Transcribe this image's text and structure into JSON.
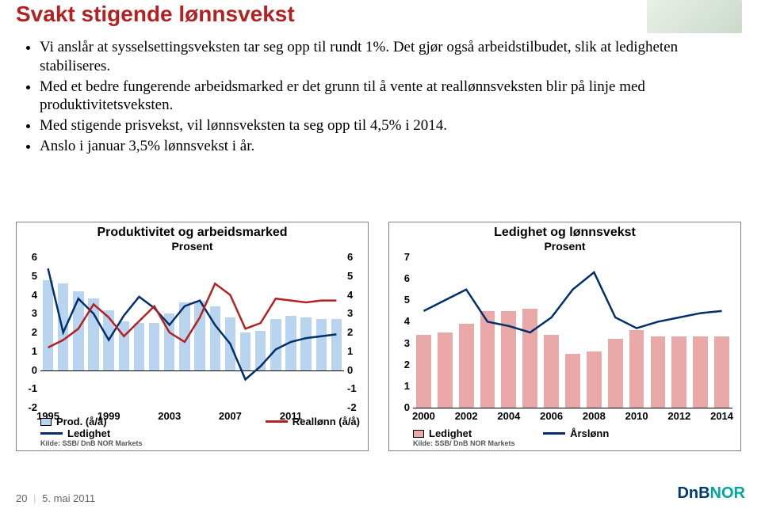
{
  "title": "Svakt stigende lønnsvekst",
  "title_color": "#b22222",
  "bullets": [
    "Vi anslår at sysselsettingsveksten tar seg opp til rundt 1%. Det gjør også arbeidstilbudet, slik at ledigheten stabiliseres.",
    "Med et bedre fungerende arbeidsmarked er det grunn til å vente at reallønnsveksten blir på linje med produktivitetsveksten.",
    "Med stigende prisvekst, vil lønnsveksten ta seg opp til 4,5% i 2014.",
    "Anslo i januar 3,5% lønnsvekst i år."
  ],
  "left_chart": {
    "title": "Produktivitet og arbeidsmarked",
    "subtitle": "Prosent",
    "ymin": -2,
    "ymax": 6,
    "ytick_step": 1,
    "x_labels": [
      "1995",
      "1999",
      "2003",
      "2007",
      "2011"
    ],
    "bar_color": "#b8d4ee",
    "line1_color": "#b22222",
    "line2_color": "#002f6c",
    "ledighet_bars": [
      4.8,
      4.6,
      4.2,
      3.8,
      3.2,
      2.6,
      2.5,
      2.5,
      3.0,
      3.6,
      3.7,
      3.4,
      2.8,
      2.0,
      2.1,
      2.7,
      2.9,
      2.8,
      2.7,
      2.7
    ],
    "prod_line": [
      5.4,
      2.0,
      3.8,
      3.0,
      1.6,
      2.9,
      3.9,
      3.3,
      2.4,
      3.4,
      3.7,
      2.4,
      1.4,
      -0.5,
      0.2,
      1.1,
      1.5,
      1.7,
      1.8,
      1.9
    ],
    "reallonn_line": [
      1.2,
      1.6,
      2.2,
      3.5,
      2.8,
      1.8,
      2.6,
      3.4,
      2.0,
      1.5,
      2.8,
      4.6,
      4.0,
      2.2,
      2.5,
      3.8,
      3.7,
      3.6,
      3.7,
      3.7
    ],
    "legend": [
      {
        "type": "box",
        "color": "#b8d4ee",
        "label": "Prod. (å/å)"
      },
      {
        "type": "line",
        "color": "#b22222",
        "label": "Reallønn (å/å)"
      },
      {
        "type": "line",
        "color": "#002f6c",
        "label": "Ledighet"
      }
    ],
    "source": "Kilde: SSB/ DnB NOR Markets"
  },
  "right_chart": {
    "title": "Ledighet og lønnsvekst",
    "subtitle": "Prosent",
    "ymin": 0,
    "ymax": 7,
    "ytick_step": 1,
    "x_labels": [
      "2000",
      "2002",
      "2004",
      "2006",
      "2008",
      "2010",
      "2012",
      "2014"
    ],
    "bar_color": "#e9a9a9",
    "line_color": "#002f6c",
    "ledighet_bars": [
      3.4,
      3.5,
      3.9,
      4.5,
      4.5,
      4.6,
      3.4,
      2.5,
      2.6,
      3.2,
      3.6,
      3.3,
      3.3,
      3.3,
      3.3
    ],
    "arslonn_line": [
      4.5,
      5.0,
      5.5,
      4.0,
      3.8,
      3.5,
      4.2,
      5.5,
      6.3,
      4.2,
      3.7,
      4.0,
      4.2,
      4.4,
      4.5
    ],
    "legend": [
      {
        "type": "box",
        "color": "#e9a9a9",
        "label": "Ledighet"
      },
      {
        "type": "line",
        "color": "#002f6c",
        "label": "Årslønn"
      }
    ],
    "source": "Kilde: SSB/ DnB NOR Markets"
  },
  "footer": {
    "page": "20",
    "date": "5. mai 2011"
  },
  "logo": {
    "part1": "DnB",
    "part2": "NOR"
  }
}
